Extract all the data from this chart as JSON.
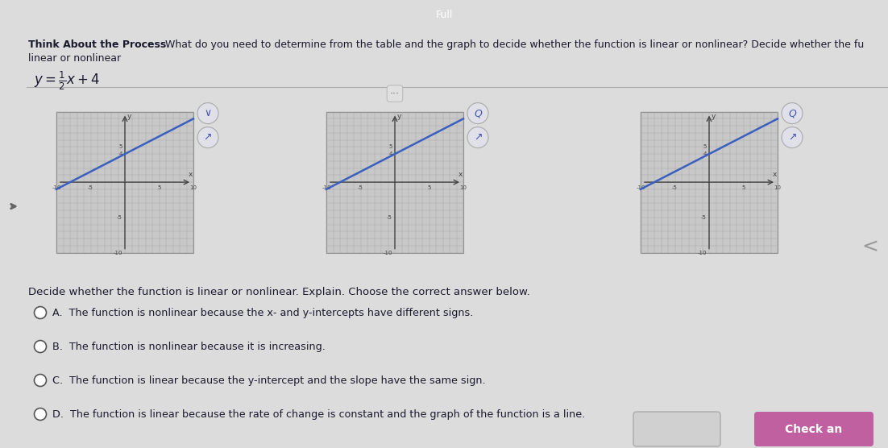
{
  "bg_color": "#e8e8e8",
  "white": "#ffffff",
  "title_bold": "Think About the Process",
  "title_rest": "  What do you need to determine from the table and the graph to decide whether the function is linear or nonlinear? Decide whether the fu",
  "subtitle": "linear or nonlinear",
  "question": "Decide whether the function is linear or nonlinear. Explain. Choose the correct answer below.",
  "options": [
    "A.  The function is nonlinear because the x- and y-intercepts have different signs.",
    "B.  The function is nonlinear because it is increasing.",
    "C.  The function is linear because the y-intercept and the slope have the same sign.",
    "D.  The function is linear because the rate of change is constant and the graph of the function is a line."
  ],
  "line_color": "#3a5fbf",
  "grid_color": "#b8b8b8",
  "axis_color": "#444444",
  "text_color": "#1a1a2e",
  "header_bg": "#2a3f9f",
  "graph_bg": "#c8c8c8",
  "check_btn_color": "#c060a0",
  "icon_circle_color": "#e0e0e8",
  "page_bg": "#dcdcdc"
}
